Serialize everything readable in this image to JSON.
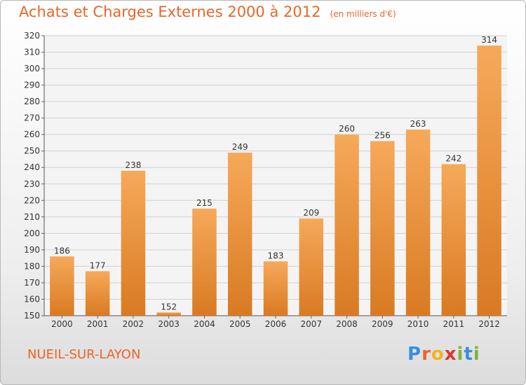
{
  "title": "Achats et Charges Externes 2000 à 2012",
  "subtitle": "(en milliers d'€)",
  "place": "NUEIL-SUR-LAYON",
  "logo": {
    "letters": [
      "P",
      "r",
      "o",
      "x",
      "i",
      "t",
      "i"
    ],
    "colors": [
      "#3a8ede",
      "#e8662a",
      "#f2b51f",
      "#d93636",
      "#7db442",
      "#3a8ede",
      "#7db442"
    ]
  },
  "colors": {
    "bar_top": "#f6a95a",
    "bar_bottom": "#d97a22",
    "title": "#e8662a",
    "grid": "#d0d0d0"
  },
  "chart_data": {
    "type": "bar",
    "categories": [
      "2000",
      "2001",
      "2002",
      "2003",
      "2004",
      "2005",
      "2006",
      "2007",
      "2008",
      "2009",
      "2010",
      "2011",
      "2012"
    ],
    "values": [
      186,
      177,
      238,
      152,
      215,
      249,
      183,
      209,
      260,
      256,
      263,
      242,
      314
    ],
    "ylim": [
      150,
      320
    ],
    "yticks": [
      150,
      160,
      170,
      180,
      190,
      200,
      210,
      220,
      230,
      240,
      250,
      260,
      270,
      280,
      290,
      300,
      310,
      320
    ],
    "grid": true,
    "data_labels": true
  }
}
